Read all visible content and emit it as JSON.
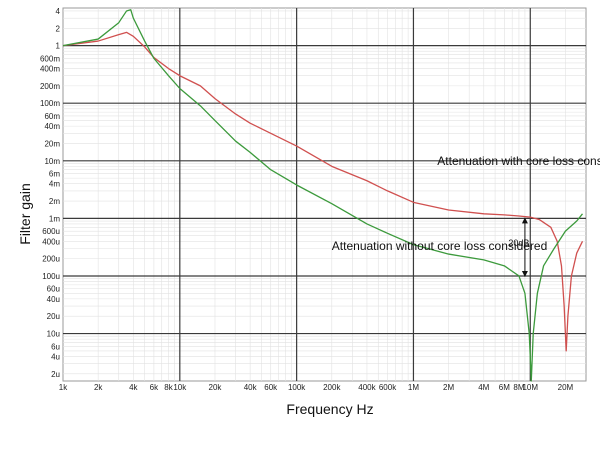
{
  "chart_data": {
    "type": "line",
    "title": "",
    "xlabel": "Frequency Hz",
    "ylabel": "Filter gain",
    "xscale": "log",
    "yscale": "log",
    "xlim": [
      1000,
      30000000
    ],
    "ylim": [
      1.5e-06,
      4.5
    ],
    "grid": true,
    "legend": "none",
    "x_ticks": [
      {
        "value": 1000,
        "label": "1k"
      },
      {
        "value": 2000,
        "label": "2k"
      },
      {
        "value": 4000,
        "label": "4k"
      },
      {
        "value": 6000,
        "label": "6k"
      },
      {
        "value": 8000,
        "label": "8k"
      },
      {
        "value": 10000,
        "label": "10k"
      },
      {
        "value": 20000,
        "label": "20k"
      },
      {
        "value": 40000,
        "label": "40k"
      },
      {
        "value": 60000,
        "label": "60k"
      },
      {
        "value": 100000,
        "label": "100k"
      },
      {
        "value": 200000,
        "label": "200k"
      },
      {
        "value": 400000,
        "label": "400k"
      },
      {
        "value": 600000,
        "label": "600k"
      },
      {
        "value": 1000000,
        "label": "1M"
      },
      {
        "value": 2000000,
        "label": "2M"
      },
      {
        "value": 4000000,
        "label": "4M"
      },
      {
        "value": 6000000,
        "label": "6M"
      },
      {
        "value": 8000000,
        "label": "8M"
      },
      {
        "value": 10000000,
        "label": "10M"
      },
      {
        "value": 20000000,
        "label": "20M"
      }
    ],
    "y_ticks": [
      {
        "value": 4,
        "label": "4"
      },
      {
        "value": 2,
        "label": "2"
      },
      {
        "value": 1,
        "label": "1"
      },
      {
        "value": 0.6,
        "label": "600m"
      },
      {
        "value": 0.4,
        "label": "400m"
      },
      {
        "value": 0.2,
        "label": "200m"
      },
      {
        "value": 0.1,
        "label": "100m"
      },
      {
        "value": 0.06,
        "label": "60m"
      },
      {
        "value": 0.04,
        "label": "40m"
      },
      {
        "value": 0.02,
        "label": "20m"
      },
      {
        "value": 0.01,
        "label": "10m"
      },
      {
        "value": 0.006,
        "label": "6m"
      },
      {
        "value": 0.004,
        "label": "4m"
      },
      {
        "value": 0.002,
        "label": "2m"
      },
      {
        "value": 0.001,
        "label": "1m"
      },
      {
        "value": 0.0006,
        "label": "600u"
      },
      {
        "value": 0.0004,
        "label": "400u"
      },
      {
        "value": 0.0002,
        "label": "200u"
      },
      {
        "value": 0.0001,
        "label": "100u"
      },
      {
        "value": 6e-05,
        "label": "60u"
      },
      {
        "value": 4e-05,
        "label": "40u"
      },
      {
        "value": 2e-05,
        "label": "20u"
      },
      {
        "value": 1e-05,
        "label": "10u"
      },
      {
        "value": 6e-06,
        "label": "6u"
      },
      {
        "value": 4e-06,
        "label": "4u"
      },
      {
        "value": 2e-06,
        "label": "2u"
      }
    ],
    "major_x_gridlines": [
      10000,
      100000,
      1000000,
      10000000
    ],
    "major_y_gridlines": [
      1,
      0.1,
      0.01,
      0.001,
      0.0001,
      1e-05
    ],
    "series": [
      {
        "color": "#d0504f",
        "points": [
          [
            1000,
            1.0
          ],
          [
            2000,
            1.2
          ],
          [
            3000,
            1.55
          ],
          [
            3500,
            1.7
          ],
          [
            4000,
            1.45
          ],
          [
            5000,
            0.95
          ],
          [
            6000,
            0.62
          ],
          [
            8000,
            0.4
          ],
          [
            10000,
            0.3
          ],
          [
            15000,
            0.2
          ],
          [
            20000,
            0.12
          ],
          [
            30000,
            0.065
          ],
          [
            40000,
            0.045
          ],
          [
            60000,
            0.03
          ],
          [
            100000,
            0.018
          ],
          [
            200000,
            0.008
          ],
          [
            400000,
            0.0045
          ],
          [
            600000,
            0.003
          ],
          [
            1000000,
            0.0019
          ],
          [
            2000000,
            0.0014
          ],
          [
            4000000,
            0.0012
          ],
          [
            6000000,
            0.00115
          ],
          [
            8000000,
            0.0011
          ],
          [
            10000000,
            0.00105
          ],
          [
            12000000,
            0.00095
          ],
          [
            15000000,
            0.0007
          ],
          [
            17000000,
            0.0004
          ],
          [
            18500000,
            0.00015
          ],
          [
            19500000,
            3e-05
          ],
          [
            20300000,
            5e-06
          ],
          [
            21000000,
            2e-05
          ],
          [
            22500000,
            0.0001
          ],
          [
            25000000,
            0.00025
          ],
          [
            28000000,
            0.0004
          ]
        ]
      },
      {
        "color": "#3c9a3c",
        "points": [
          [
            1000,
            1.0
          ],
          [
            2000,
            1.3
          ],
          [
            3000,
            2.5
          ],
          [
            3500,
            4.0
          ],
          [
            3800,
            4.2
          ],
          [
            4000,
            3.0
          ],
          [
            5000,
            1.2
          ],
          [
            6000,
            0.6
          ],
          [
            8000,
            0.3
          ],
          [
            10000,
            0.18
          ],
          [
            15000,
            0.09
          ],
          [
            20000,
            0.05
          ],
          [
            30000,
            0.022
          ],
          [
            40000,
            0.014
          ],
          [
            60000,
            0.007
          ],
          [
            100000,
            0.0038
          ],
          [
            200000,
            0.0018
          ],
          [
            400000,
            0.0008
          ],
          [
            600000,
            0.00055
          ],
          [
            1000000,
            0.00035
          ],
          [
            2000000,
            0.00024
          ],
          [
            4000000,
            0.00019
          ],
          [
            6000000,
            0.00015
          ],
          [
            8000000,
            0.0001
          ],
          [
            9000000,
            5e-05
          ],
          [
            9800000,
            1e-05
          ],
          [
            10200000,
            1.5e-06
          ],
          [
            10600000,
            1e-05
          ],
          [
            11500000,
            5e-05
          ],
          [
            13000000,
            0.00015
          ],
          [
            16000000,
            0.0003
          ],
          [
            20000000,
            0.0006
          ],
          [
            25000000,
            0.0009
          ],
          [
            28000000,
            0.0012
          ]
        ]
      }
    ],
    "annotations": [
      {
        "text": "Attenuation with core loss considered",
        "x": 1600000,
        "y": 0.0085
      },
      {
        "text": "Attenuation without core loss considered",
        "x": 200000,
        "y": 0.00028
      },
      {
        "text": "20dB",
        "x": 6500000,
        "y": 0.00033
      }
    ],
    "arrow": {
      "x": 9000000,
      "y_from": 0.001,
      "y_to": 0.0001
    }
  }
}
